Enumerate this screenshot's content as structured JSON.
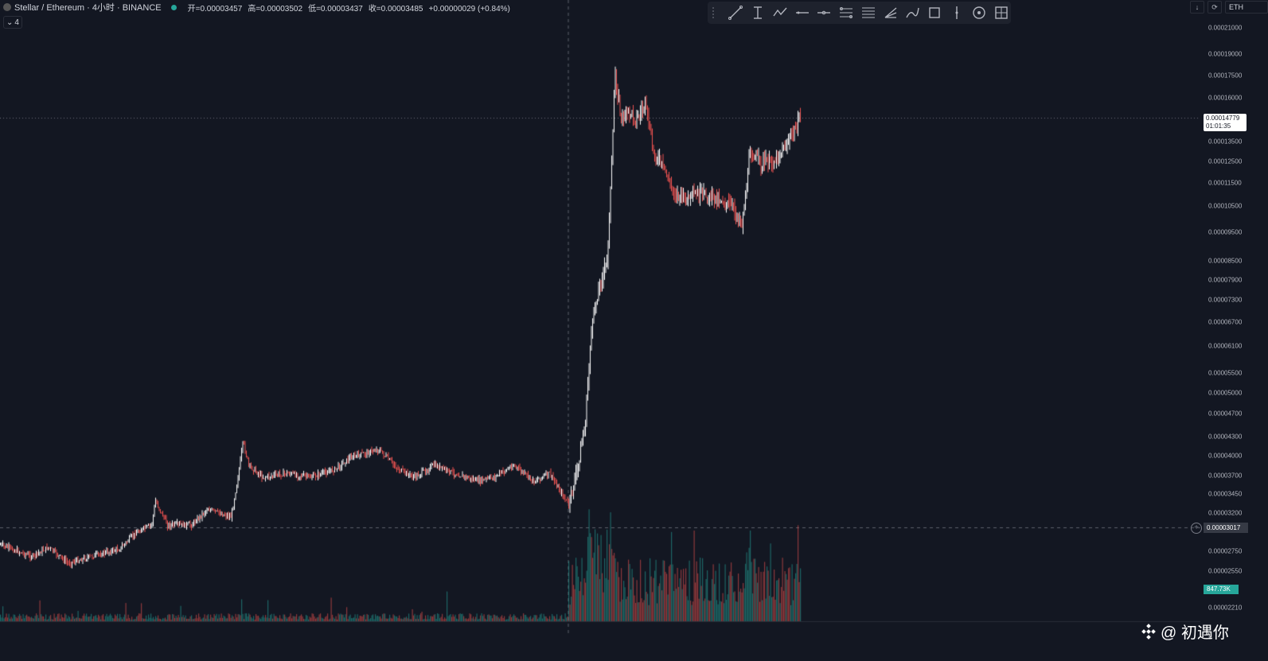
{
  "header": {
    "symbol": "Stellar / Ethereum · 4小时 · BINANCE",
    "open_label": "开=0.00003457",
    "high_label": "高=0.00003502",
    "low_label": "低=0.00003437",
    "close_label": "收=0.00003485",
    "change_label": "+0.00000029 (+0.84%)",
    "collapse_label": "4"
  },
  "toolbar": {
    "tools": [
      "trend-line-icon",
      "vertical-measure-icon",
      "path-icon",
      "horizontal-line-icon",
      "horizontal-ray-icon",
      "parallel-channel-icon",
      "fib-retracement-icon",
      "pitchfork-icon",
      "brush-icon",
      "rectangle-icon",
      "vertical-line-icon",
      "circle-icon",
      "table-icon"
    ]
  },
  "topright": {
    "currency": "ETH",
    "down_arrow": "↓",
    "sync": "⟳"
  },
  "price_axis": {
    "ticks": [
      "0.00021000",
      "0.00019000",
      "0.00017500",
      "0.00016000",
      "0.00013500",
      "0.00012500",
      "0.00011500",
      "0.00010500",
      "0.00009500",
      "0.00008500",
      "0.00007900",
      "0.00007300",
      "0.00006700",
      "0.00006100",
      "0.00005500",
      "0.00005000",
      "0.00004700",
      "0.00004300",
      "0.00004000",
      "0.00003700",
      "0.00003450",
      "0.00003200",
      "0.00002750",
      "0.00002550",
      "0.00002210"
    ],
    "last_price": "0.00014779",
    "countdown": "01:01:35",
    "crosshair_price": "0.00003017",
    "volume_label": "847.73K"
  },
  "colors": {
    "bg": "#131722",
    "up": "#ffffff",
    "down": "#ef5350",
    "vol_up": "#26a69a",
    "vol_down": "#ef5350"
  },
  "watermark": {
    "text": "@ 初遇你"
  }
}
